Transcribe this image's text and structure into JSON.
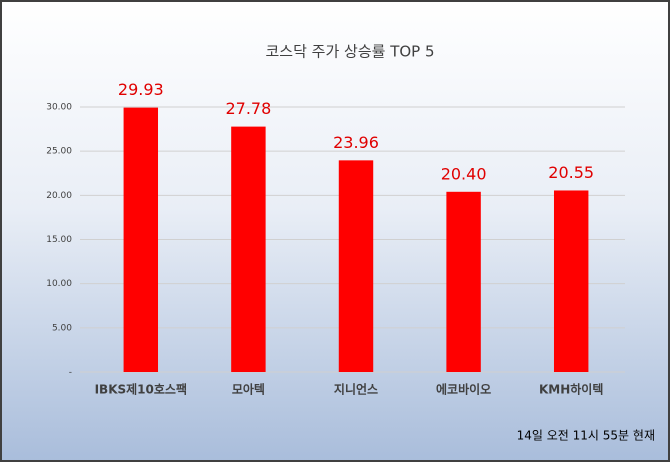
{
  "chart_data": {
    "type": "bar",
    "title": "코스닥 주가 상승률 TOP 5",
    "categories": [
      "IBKS제10호스팩",
      "모아텍",
      "지니언스",
      "에코바이오",
      "KMH하이텍"
    ],
    "values": [
      29.93,
      27.78,
      23.96,
      20.4,
      20.55
    ],
    "value_labels": [
      "29.93",
      "27.78",
      "23.96",
      "20.40",
      "20.55"
    ],
    "color": "#ff0000",
    "label_color": "#e00000",
    "ylim": [
      0,
      30
    ],
    "yticks": [
      {
        "value": 0,
        "label": "-"
      },
      {
        "value": 5,
        "label": "5.00"
      },
      {
        "value": 10,
        "label": "10.00"
      },
      {
        "value": 15,
        "label": "15.00"
      },
      {
        "value": 20,
        "label": "20.00"
      },
      {
        "value": 25,
        "label": "25.00"
      },
      {
        "value": 30,
        "label": "30.00"
      }
    ],
    "grid": true,
    "annotation": "14일 오전 11시 55분 현재"
  }
}
